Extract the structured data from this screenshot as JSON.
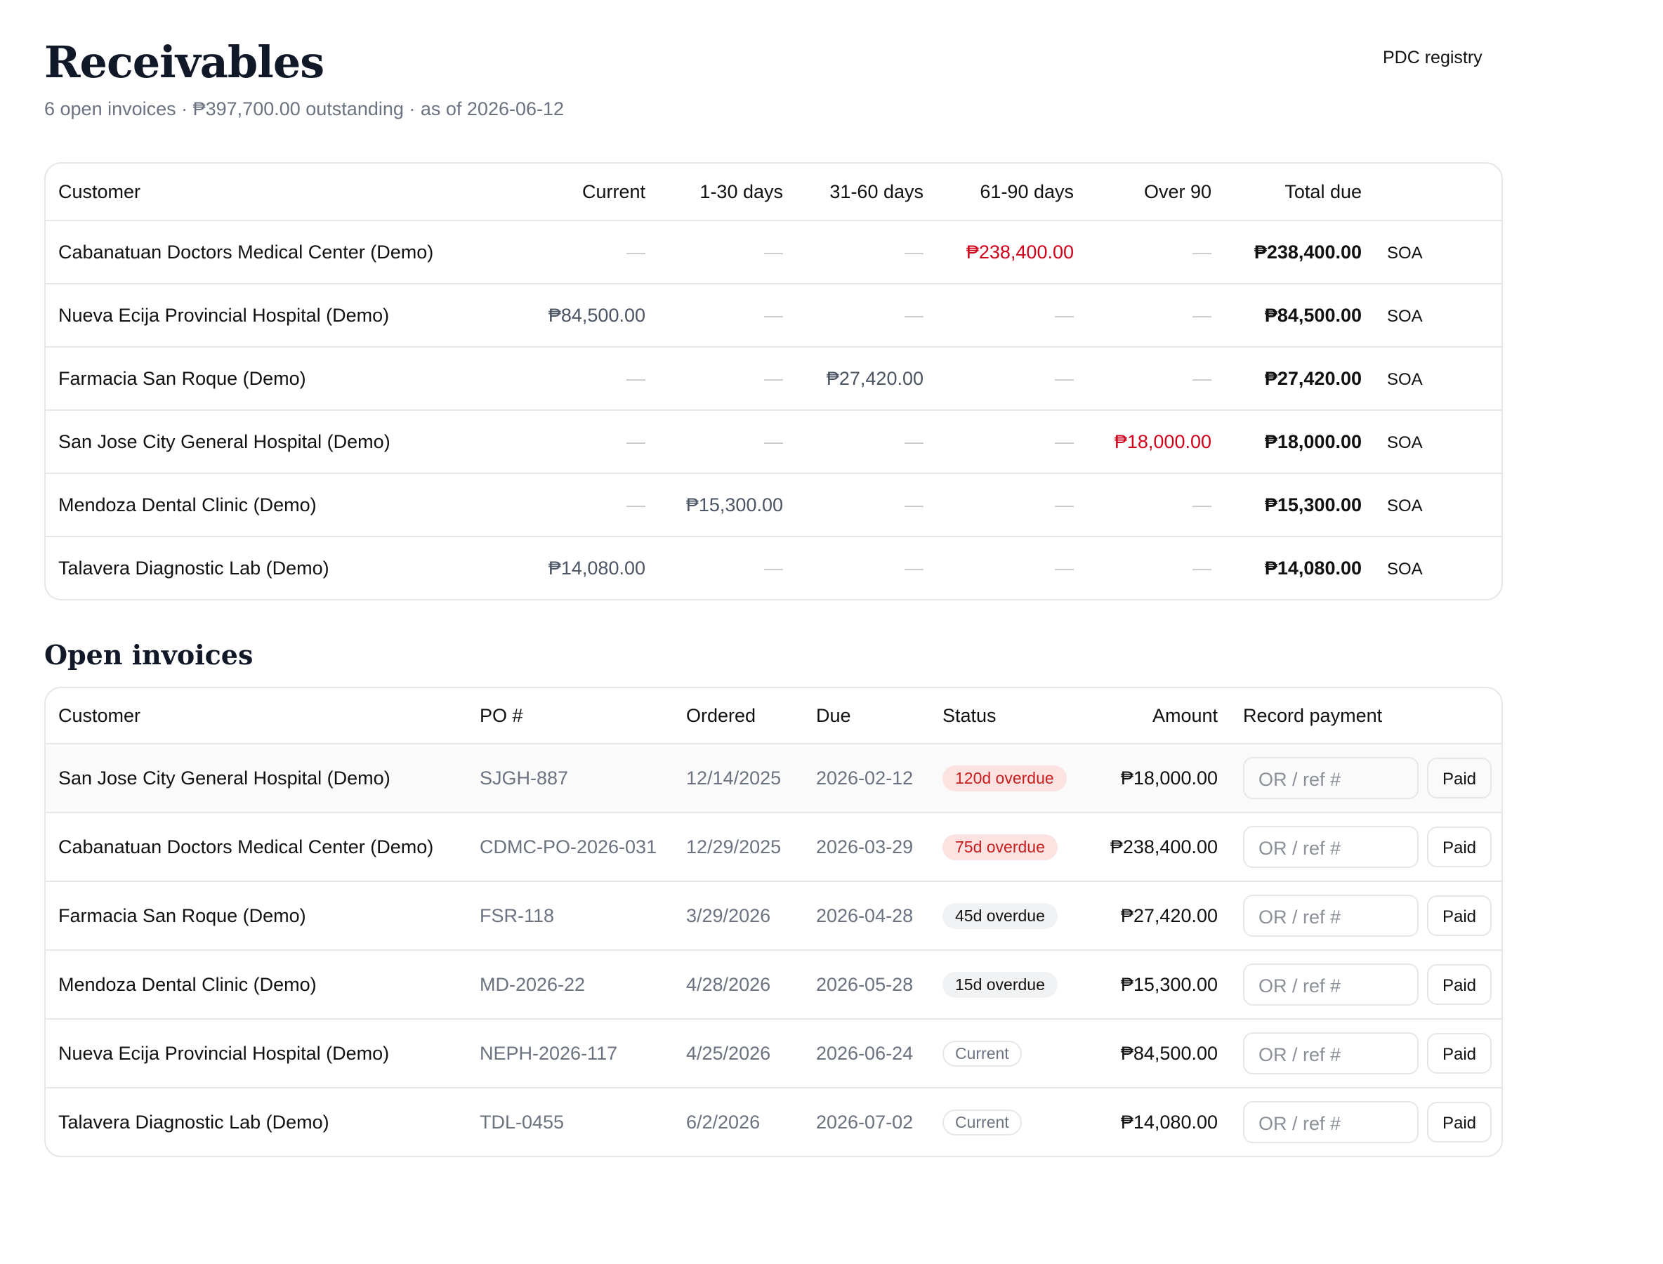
{
  "header": {
    "title": "Receivables",
    "subtitle": "6 open invoices · ₱397,700.00 outstanding · as of 2026-06-12",
    "link": "PDC registry"
  },
  "aging": {
    "columns": [
      "Customer",
      "Current",
      "1-30 days",
      "31-60 days",
      "61-90 days",
      "Over 90",
      "Total due"
    ],
    "placeholder": "—",
    "action": "SOA",
    "alert_color": "#d0021b",
    "alert_columns": [
      4,
      5
    ],
    "rows": [
      [
        "Cabanatuan Doctors Medical Center (Demo)",
        null,
        null,
        null,
        "₱238,400.00",
        null,
        "₱238,400.00"
      ],
      [
        "Nueva Ecija Provincial Hospital (Demo)",
        "₱84,500.00",
        null,
        null,
        null,
        null,
        "₱84,500.00"
      ],
      [
        "Farmacia San Roque (Demo)",
        null,
        null,
        "₱27,420.00",
        null,
        null,
        "₱27,420.00"
      ],
      [
        "San Jose City General Hospital (Demo)",
        null,
        null,
        null,
        null,
        "₱18,000.00",
        "₱18,000.00"
      ],
      [
        "Mendoza Dental Clinic (Demo)",
        null,
        "₱15,300.00",
        null,
        null,
        null,
        "₱15,300.00"
      ],
      [
        "Talavera Diagnostic Lab (Demo)",
        "₱14,080.00",
        null,
        null,
        null,
        null,
        "₱14,080.00"
      ]
    ]
  },
  "invoices": {
    "title": "Open invoices",
    "columns": [
      "Customer",
      "PO #",
      "Ordered",
      "Due",
      "Status",
      "Amount",
      "Record payment"
    ],
    "input_placeholder": "OR / ref #",
    "button": "Paid",
    "rows": [
      {
        "customer": "San Jose City General Hospital (Demo)",
        "po": "SJGH-887",
        "ordered": "12/14/2025",
        "due": "2026-02-12",
        "status": "120d overdue",
        "status_style": "danger",
        "amount": "₱18,000.00"
      },
      {
        "customer": "Cabanatuan Doctors Medical Center (Demo)",
        "po": "CDMC-PO-2026-031",
        "ordered": "12/29/2025",
        "due": "2026-03-29",
        "status": "75d overdue",
        "status_style": "danger",
        "amount": "₱238,400.00"
      },
      {
        "customer": "Farmacia San Roque (Demo)",
        "po": "FSR-118",
        "ordered": "3/29/2026",
        "due": "2026-04-28",
        "status": "45d overdue",
        "status_style": "neutral",
        "amount": "₱27,420.00"
      },
      {
        "customer": "Mendoza Dental Clinic (Demo)",
        "po": "MD-2026-22",
        "ordered": "4/28/2026",
        "due": "2026-05-28",
        "status": "15d overdue",
        "status_style": "neutral",
        "amount": "₱15,300.00"
      },
      {
        "customer": "Nueva Ecija Provincial Hospital (Demo)",
        "po": "NEPH-2026-117",
        "ordered": "4/25/2026",
        "due": "2026-06-24",
        "status": "Current",
        "status_style": "outline",
        "amount": "₱84,500.00"
      },
      {
        "customer": "Talavera Diagnostic Lab (Demo)",
        "po": "TDL-0455",
        "ordered": "6/2/2026",
        "due": "2026-07-02",
        "status": "Current",
        "status_style": "outline",
        "amount": "₱14,080.00"
      }
    ]
  }
}
